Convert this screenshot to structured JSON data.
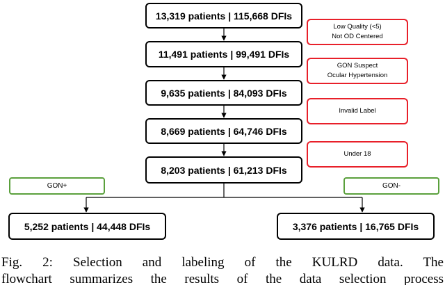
{
  "main_boxes": [
    "13,319 patients | 115,668 DFIs",
    "11,491 patients | 99,491 DFIs",
    "9,635 patients | 84,093 DFIs",
    "8,669 patients | 64,746 DFIs",
    "8,203 patients | 61,213 DFIs"
  ],
  "exclusions": [
    {
      "line1": "Low Quality (<5)",
      "line2": "Not OD Centered"
    },
    {
      "line1": "GON Suspect",
      "line2": "Ocular Hypertension"
    },
    {
      "line1": "Invalid Label",
      "line2": ""
    },
    {
      "line1": "Under 18",
      "line2": ""
    }
  ],
  "labels": {
    "left": "GON+",
    "right": "GON-"
  },
  "outcomes": {
    "left": "5,252 patients | 44,448 DFIs",
    "right": "3,376 patients | 16,765 DFIs"
  },
  "caption": {
    "line1": "Fig. 2: Selection and labeling of the KULRD data. The",
    "line2": "flowchart summarizes the results of the data selection process"
  },
  "colors": {
    "box_border": "#000000",
    "exclusion_border": "#e8202a",
    "label_border": "#5aa03c"
  }
}
